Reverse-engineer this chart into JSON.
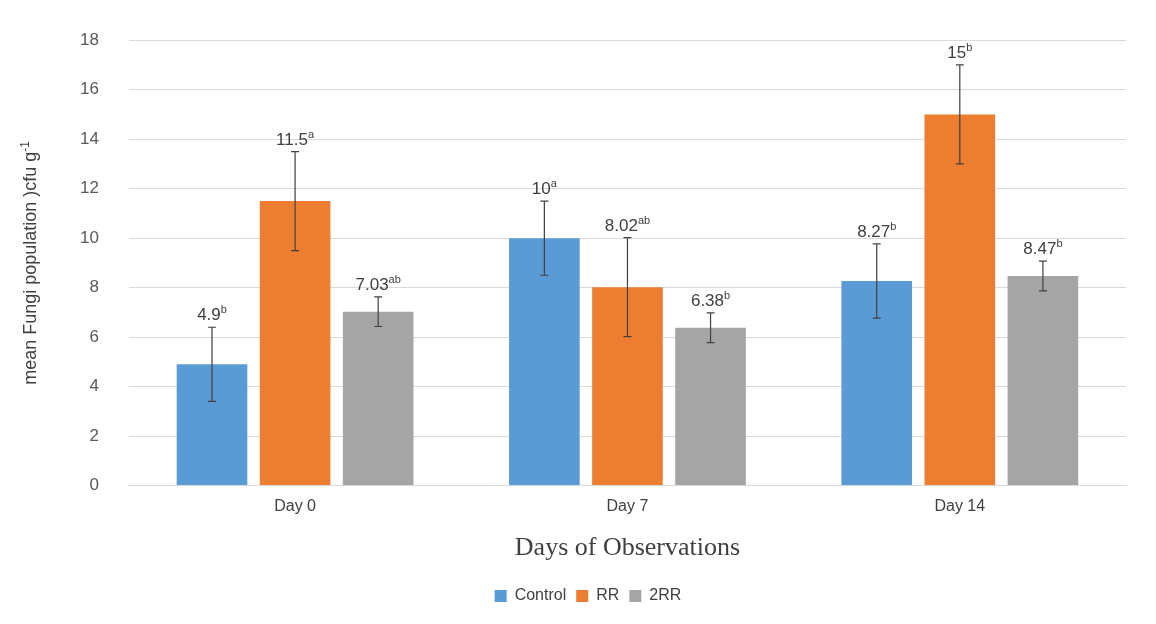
{
  "chart_data": {
    "type": "bar",
    "xlabel": "Days of Observations",
    "ylabel": "mean Fungi population )cfu g$^{-1}$",
    "categories": [
      "Day 0",
      "Day 7",
      "Day 14"
    ],
    "series": [
      {
        "name": "Control",
        "color": "#5b9bd5",
        "values": [
          4.9,
          10,
          8.27
        ],
        "errors": [
          1.5,
          1.5,
          1.5
        ],
        "value_labels": [
          "4.9$^{b}$",
          "10$^{a}$",
          "8.27$^{b}$"
        ]
      },
      {
        "name": "RR",
        "color": "#ed7d31",
        "values": [
          11.5,
          8.02,
          15
        ],
        "errors": [
          2,
          2,
          2
        ],
        "value_labels": [
          "11.5$^{a}$",
          "8.02$^{ab}$",
          "15$^{b}$"
        ]
      },
      {
        "name": "2RR",
        "color": "#a5a5a5",
        "values": [
          7.03,
          6.38,
          8.47
        ],
        "errors": [
          0.6,
          0.6,
          0.6
        ],
        "value_labels": [
          "7.03$^{ab}$",
          "6.38$^{b}$",
          "8.47$^{b}$"
        ]
      }
    ],
    "ylim": [
      0,
      18
    ],
    "yticks": [
      0,
      2,
      4,
      6,
      8,
      10,
      12,
      14,
      16,
      18
    ],
    "grid": "y",
    "legend": "bottom"
  }
}
